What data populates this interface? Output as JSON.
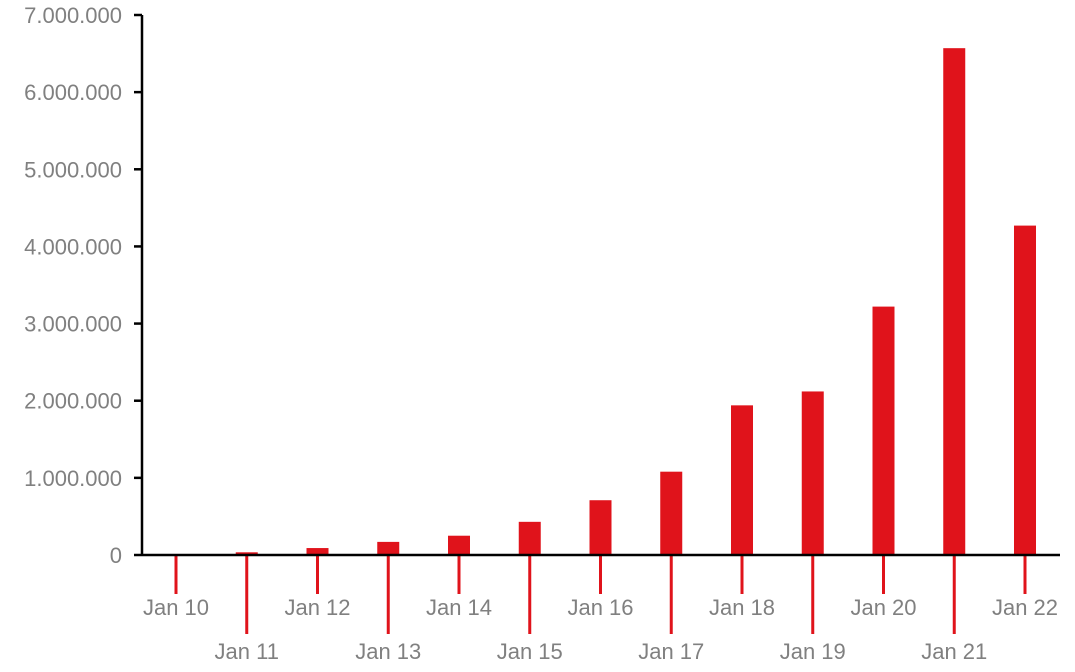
{
  "chart_data": {
    "type": "bar",
    "categories": [
      "Jan 10",
      "Jan 11",
      "Jan 12",
      "Jan 13",
      "Jan 14",
      "Jan 15",
      "Jan 16",
      "Jan 17",
      "Jan 18",
      "Jan 19",
      "Jan 20",
      "Jan 21",
      "Jan 22"
    ],
    "values": [
      5000,
      35000,
      90000,
      170000,
      250000,
      430000,
      710000,
      1080000,
      1940000,
      2120000,
      3220000,
      6570000,
      4270000
    ],
    "title": "",
    "xlabel": "",
    "ylabel": "",
    "ylim": [
      0,
      7000000
    ],
    "yticks": [
      0,
      1000000,
      2000000,
      3000000,
      4000000,
      5000000,
      6000000,
      7000000
    ],
    "ytick_labels": [
      "0",
      "1.000.000",
      "2.000.000",
      "3.000.000",
      "4.000.000",
      "5.000.000",
      "6.000.000",
      "7.000.000"
    ],
    "grid": false,
    "legend": "none",
    "bar_color": "#e0131b",
    "axis_color": "#000000",
    "label_color": "#808080"
  }
}
